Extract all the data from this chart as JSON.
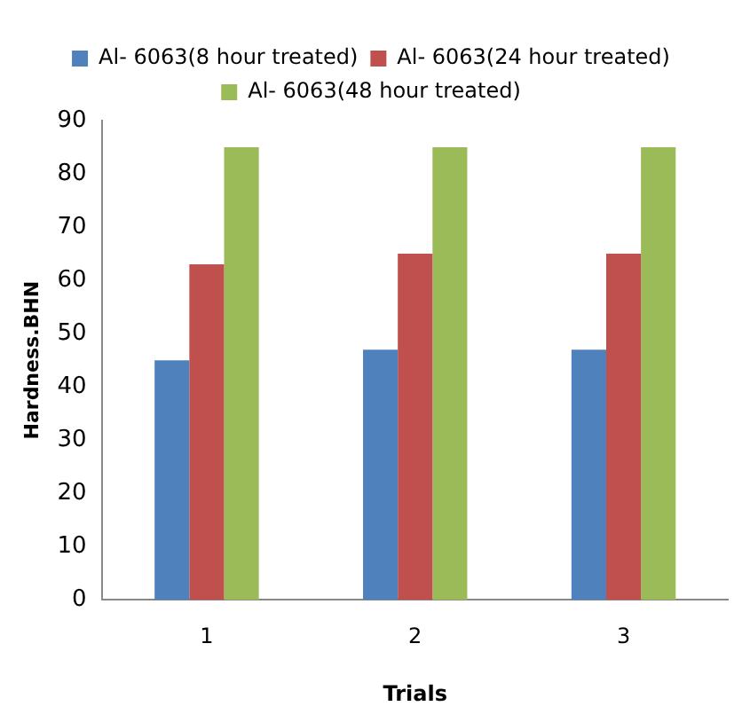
{
  "chart_data": {
    "type": "bar",
    "xlabel": "Trials",
    "ylabel": "Hardness.BHN",
    "categories": [
      "1",
      "2",
      "3"
    ],
    "series": [
      {
        "name": "Al- 6063(8 hour treated)",
        "color": "#4f81bd",
        "values": [
          45,
          47,
          47
        ]
      },
      {
        "name": "Al- 6063(24 hour treated)",
        "color": "#c0504d",
        "values": [
          63,
          65,
          65
        ]
      },
      {
        "name": "Al- 6063(48 hour treated)",
        "color": "#9bbb59",
        "values": [
          85,
          85,
          85
        ]
      }
    ],
    "ylim": [
      0,
      90
    ],
    "yticks": [
      0,
      10,
      20,
      30,
      40,
      50,
      60,
      70,
      80,
      90
    ],
    "grid": false,
    "legend": "top"
  }
}
